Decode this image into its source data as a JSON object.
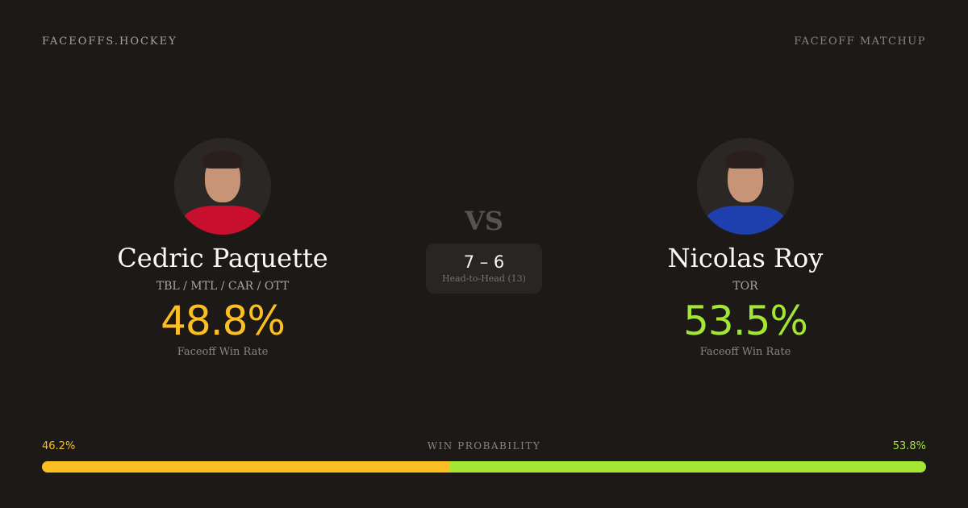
{
  "header": {
    "brand": "FACEOFFS.HOCKEY",
    "page_type": "FACEOFF MATCHUP"
  },
  "players": [
    {
      "name": "Cedric Paquette",
      "teams": "TBL / MTL / CAR / OTT",
      "win_rate": "48.8%",
      "win_rate_label": "Faceoff Win Rate",
      "color": "#fbbf24",
      "jersey_color": "#c8102e"
    },
    {
      "name": "Nicolas Roy",
      "teams": "TOR",
      "win_rate": "53.5%",
      "win_rate_label": "Faceoff Win Rate",
      "color": "#a3e635",
      "jersey_color": "#1e3fae"
    }
  ],
  "vs": "VS",
  "head_to_head": {
    "score": "7 – 6",
    "label": "Head-to-Head (13)"
  },
  "win_probability": {
    "label": "WIN PROBABILITY",
    "left": "46.2%",
    "right": "53.8%",
    "left_value": 46.2,
    "right_value": 53.8
  }
}
